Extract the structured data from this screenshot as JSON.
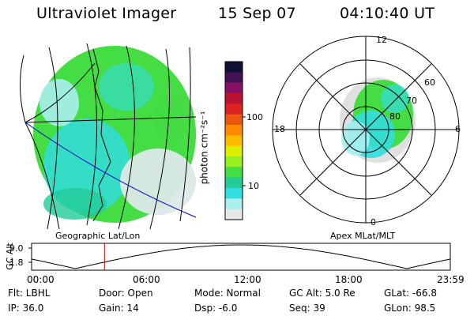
{
  "header": {
    "instrument": "Ultraviolet Imager",
    "date": "15 Sep 07",
    "time": "04:10:40 UT"
  },
  "colorbar": {
    "unit_label": "photon cm⁻²s⁻¹",
    "ticks": [
      "100",
      "10"
    ],
    "colors": [
      "#111133",
      "#441155",
      "#881166",
      "#bb1133",
      "#dd2222",
      "#ee5511",
      "#ff8800",
      "#ffbb00",
      "#ddee00",
      "#99ee22",
      "#44dd44",
      "#22cc99",
      "#33dddd",
      "#aaeeee",
      "#e8e8e8"
    ]
  },
  "geo_panel": {
    "caption": "Geographic Lat/Lon"
  },
  "polar_panel": {
    "caption": "Apex MLat/MLT",
    "mlt_labels": {
      "top": "12",
      "left": "18",
      "right": "6",
      "bottom": "0"
    },
    "lat_labels": [
      "60",
      "70",
      "80"
    ]
  },
  "altitude_plot": {
    "ylabel": "GC Alt",
    "yticks": [
      "9.0",
      "1.8"
    ],
    "xticks": [
      "00:00",
      "06:00",
      "12:00",
      "18:00",
      "23:59"
    ],
    "current_hour": 4.18
  },
  "footer": {
    "flt": "Flt: LBHL",
    "door": "Door: Open",
    "mode": "Mode: Normal",
    "gc_alt": "GC Alt: 5.0 Re",
    "glat": "GLat: -66.8",
    "ip": "IP: 36.0",
    "gain": "Gain: 14",
    "dsp": "Dsp:   -6.0",
    "seq": "Seq: 39",
    "glon": "GLon: 98.5"
  },
  "colors": {
    "aurora_green": "#44dd44",
    "aurora_cyan": "#33dddd",
    "pale": "#aaeeee",
    "gray": "#e0e0e0",
    "marker": "#cc0000",
    "track": "#0000cc"
  }
}
